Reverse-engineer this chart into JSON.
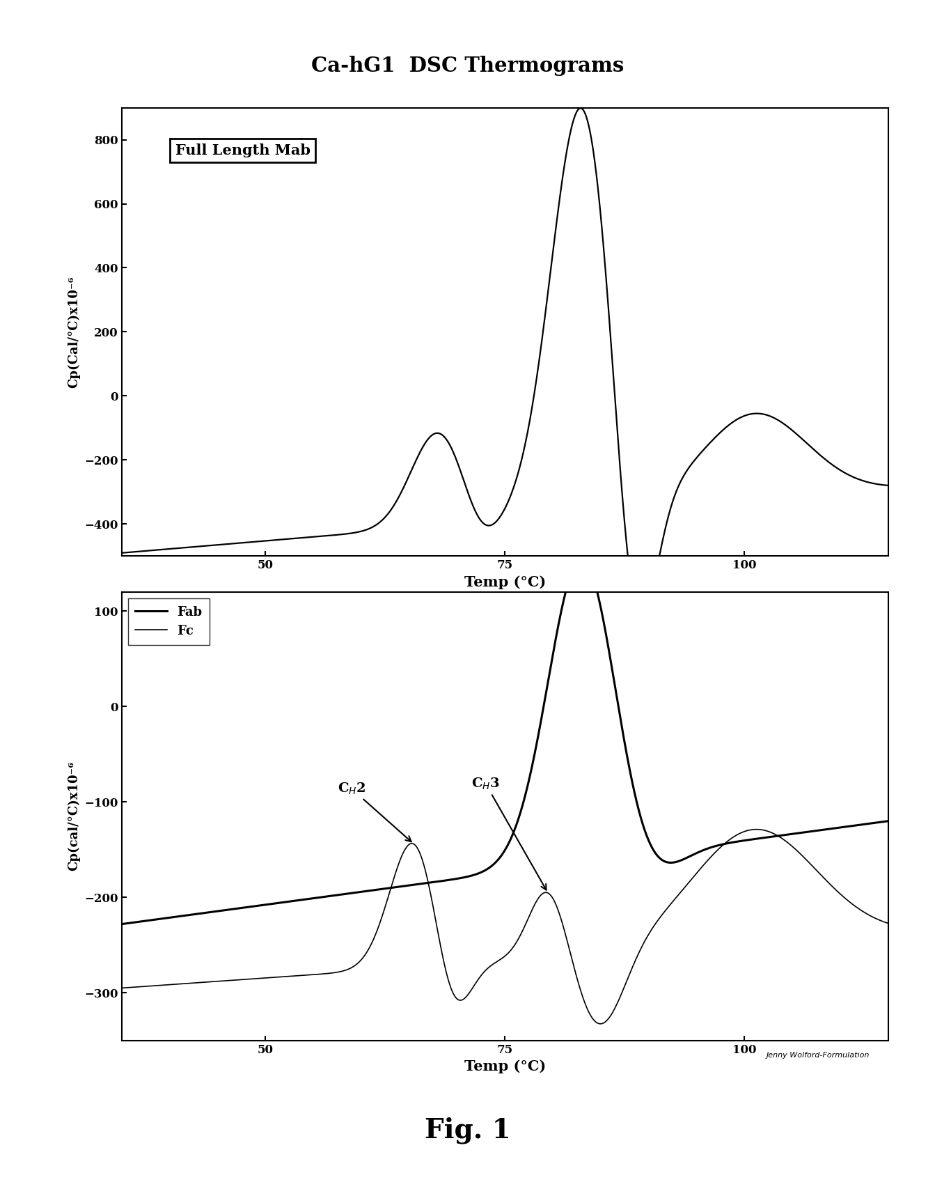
{
  "title": "Ca-hG1  DSC Thermograms",
  "fig1_label": "Full Length Mab",
  "fig2_label_fab": "Fab",
  "fig2_label_fc": "Fc",
  "xlabel": "Temp (°C)",
  "ylabel1": "Cp(Cal/°C)x10⁻⁶",
  "ylabel2": "Cp(cal/°C)x10⁻⁶",
  "watermark": "Jenny Wolford-Formulation",
  "fig_label": "Fig. 1",
  "background_color": "#ffffff",
  "line_color": "#000000",
  "plot1_xlim": [
    35,
    115
  ],
  "plot1_ylim": [
    -500,
    900
  ],
  "plot1_xticks": [
    50,
    75,
    100
  ],
  "plot1_yticks": [
    -400,
    -200,
    0,
    200,
    400,
    600,
    800
  ],
  "plot2_xlim": [
    35,
    115
  ],
  "plot2_ylim": [
    -350,
    120
  ],
  "plot2_xticks": [
    50,
    75,
    100
  ],
  "plot2_yticks": [
    -300,
    -200,
    -100,
    0,
    100
  ]
}
